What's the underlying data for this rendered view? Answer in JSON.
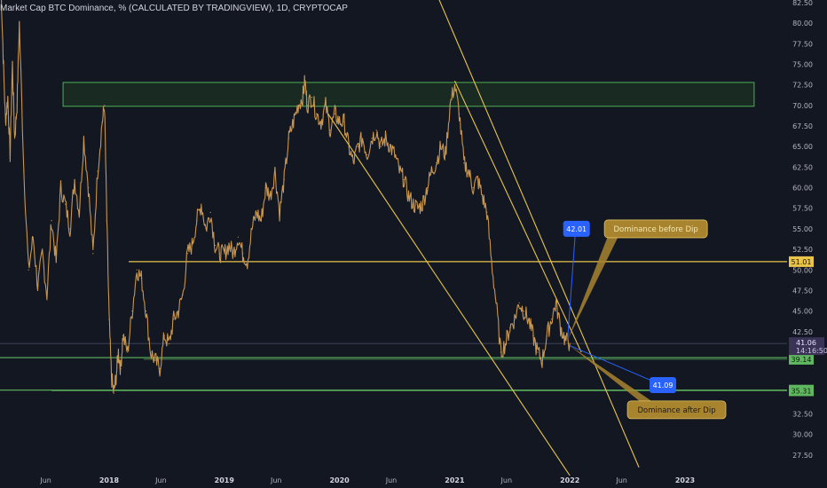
{
  "header": {
    "title": "Market Cap BTC Dominance, % (CALCULATED BY TRADINGVIEW), 1D, CRYPTOCAP"
  },
  "colors": {
    "background": "#131722",
    "candle": "#c8964f",
    "trendline": "#e8c44a",
    "support": "#5fb85f",
    "zone_fill": "#1f3a22",
    "zone_border": "#4caf50",
    "price_tag": "#3a3355",
    "callout_bg": "#a8842f",
    "value_box": "#2962ff"
  },
  "chart_data": {
    "type": "line",
    "title": "Market Cap BTC Dominance, % (CALCULATED BY TRADINGVIEW), 1D, CRYPTOCAP",
    "xlabel": "",
    "ylabel": "",
    "ylim": [
      25,
      82.5
    ],
    "x_ticks": [
      {
        "t": 2017.45,
        "label": "Jun"
      },
      {
        "t": 2018.0,
        "label": "2018"
      },
      {
        "t": 2018.45,
        "label": "Jun"
      },
      {
        "t": 2019.0,
        "label": "2019"
      },
      {
        "t": 2019.45,
        "label": "Jun"
      },
      {
        "t": 2020.0,
        "label": "2020"
      },
      {
        "t": 2020.45,
        "label": "Jun"
      },
      {
        "t": 2021.0,
        "label": "2021"
      },
      {
        "t": 2021.45,
        "label": "Jun"
      },
      {
        "t": 2022.0,
        "label": "2022"
      },
      {
        "t": 2022.45,
        "label": "Jun"
      },
      {
        "t": 2023.0,
        "label": "2023"
      }
    ],
    "y_ticks": [
      "82.50",
      "80.00",
      "77.50",
      "75.00",
      "72.50",
      "70.00",
      "67.50",
      "65.00",
      "62.50",
      "60.00",
      "57.50",
      "55.00",
      "52.50",
      "50.00",
      "47.50",
      "45.00",
      "42.50",
      "32.50",
      "30.00",
      "27.50"
    ],
    "series": [
      {
        "values": [
          [
            2017.06,
            85
          ],
          [
            2017.08,
            76
          ],
          [
            2017.1,
            68
          ],
          [
            2017.12,
            71
          ],
          [
            2017.14,
            64
          ],
          [
            2017.16,
            75
          ],
          [
            2017.18,
            66
          ],
          [
            2017.2,
            70
          ],
          [
            2017.22,
            80
          ],
          [
            2017.26,
            62
          ],
          [
            2017.3,
            50
          ],
          [
            2017.34,
            54
          ],
          [
            2017.38,
            48
          ],
          [
            2017.42,
            52
          ],
          [
            2017.46,
            47
          ],
          [
            2017.5,
            56
          ],
          [
            2017.54,
            51
          ],
          [
            2017.58,
            60
          ],
          [
            2017.62,
            58
          ],
          [
            2017.66,
            55
          ],
          [
            2017.7,
            61
          ],
          [
            2017.74,
            57
          ],
          [
            2017.78,
            66
          ],
          [
            2017.82,
            60
          ],
          [
            2017.86,
            52
          ],
          [
            2017.9,
            62
          ],
          [
            2017.94,
            68
          ],
          [
            2017.96,
            70
          ],
          [
            2017.98,
            56
          ],
          [
            2018.0,
            44
          ],
          [
            2018.02,
            37
          ],
          [
            2018.04,
            35
          ],
          [
            2018.06,
            37
          ],
          [
            2018.08,
            40
          ],
          [
            2018.1,
            38
          ],
          [
            2018.12,
            42
          ],
          [
            2018.16,
            40
          ],
          [
            2018.2,
            45
          ],
          [
            2018.24,
            50
          ],
          [
            2018.28,
            49
          ],
          [
            2018.32,
            45
          ],
          [
            2018.36,
            40
          ],
          [
            2018.4,
            39
          ],
          [
            2018.44,
            38
          ],
          [
            2018.48,
            42
          ],
          [
            2018.52,
            41
          ],
          [
            2018.56,
            44
          ],
          [
            2018.6,
            45
          ],
          [
            2018.64,
            47
          ],
          [
            2018.68,
            52
          ],
          [
            2018.72,
            53
          ],
          [
            2018.76,
            56
          ],
          [
            2018.8,
            58
          ],
          [
            2018.84,
            55
          ],
          [
            2018.88,
            57
          ],
          [
            2018.92,
            53
          ],
          [
            2018.96,
            52
          ],
          [
            2019.0,
            52
          ],
          [
            2019.04,
            53
          ],
          [
            2019.08,
            52
          ],
          [
            2019.12,
            54
          ],
          [
            2019.16,
            52
          ],
          [
            2019.2,
            51
          ],
          [
            2019.24,
            55
          ],
          [
            2019.28,
            57
          ],
          [
            2019.32,
            56
          ],
          [
            2019.36,
            60
          ],
          [
            2019.4,
            59
          ],
          [
            2019.44,
            62
          ],
          [
            2019.48,
            57
          ],
          [
            2019.52,
            61
          ],
          [
            2019.56,
            66
          ],
          [
            2019.6,
            68
          ],
          [
            2019.64,
            70
          ],
          [
            2019.68,
            71
          ],
          [
            2019.7,
            73
          ],
          [
            2019.72,
            70
          ],
          [
            2019.76,
            71
          ],
          [
            2019.8,
            69
          ],
          [
            2019.84,
            68
          ],
          [
            2019.88,
            70
          ],
          [
            2019.92,
            67
          ],
          [
            2019.96,
            69
          ],
          [
            2020.0,
            68
          ],
          [
            2020.04,
            68
          ],
          [
            2020.08,
            65
          ],
          [
            2020.12,
            63
          ],
          [
            2020.16,
            65
          ],
          [
            2020.2,
            66
          ],
          [
            2020.24,
            64
          ],
          [
            2020.28,
            66
          ],
          [
            2020.32,
            67
          ],
          [
            2020.36,
            65
          ],
          [
            2020.4,
            66
          ],
          [
            2020.44,
            65
          ],
          [
            2020.48,
            64
          ],
          [
            2020.52,
            62
          ],
          [
            2020.56,
            61
          ],
          [
            2020.6,
            59
          ],
          [
            2020.64,
            58
          ],
          [
            2020.68,
            57.5
          ],
          [
            2020.72,
            58
          ],
          [
            2020.76,
            60
          ],
          [
            2020.8,
            62
          ],
          [
            2020.84,
            63
          ],
          [
            2020.88,
            65
          ],
          [
            2020.92,
            64
          ],
          [
            2020.96,
            70
          ],
          [
            2021.0,
            72.5
          ],
          [
            2021.04,
            69
          ],
          [
            2021.08,
            63
          ],
          [
            2021.12,
            62
          ],
          [
            2021.16,
            60
          ],
          [
            2021.2,
            61
          ],
          [
            2021.24,
            59
          ],
          [
            2021.28,
            57
          ],
          [
            2021.32,
            51
          ],
          [
            2021.36,
            46
          ],
          [
            2021.4,
            40
          ],
          [
            2021.44,
            41
          ],
          [
            2021.48,
            43
          ],
          [
            2021.52,
            44
          ],
          [
            2021.56,
            46
          ],
          [
            2021.6,
            45
          ],
          [
            2021.64,
            44
          ],
          [
            2021.68,
            42
          ],
          [
            2021.72,
            40
          ],
          [
            2021.76,
            39
          ],
          [
            2021.8,
            42
          ],
          [
            2021.84,
            44
          ],
          [
            2021.88,
            46
          ],
          [
            2021.92,
            43
          ],
          [
            2021.96,
            41.5
          ],
          [
            2022.0,
            41.06
          ]
        ]
      }
    ],
    "zones": [
      {
        "t_start": 2017.6,
        "t_end": 2023.6,
        "y_low": 69.9,
        "y_high": 72.8
      }
    ],
    "horizontal_lines": [
      {
        "y": 51.01,
        "t_start": 2018.17,
        "label": "51.01",
        "kind": "resistance"
      },
      {
        "y": 41.06,
        "t_start": 2016.9,
        "label": "41.06",
        "kind": "current"
      },
      {
        "y": 39.34,
        "t_start": 2016.9,
        "label": "39.34",
        "kind": "support"
      },
      {
        "y": 39.14,
        "t_start": 2018.3,
        "label": "39.14",
        "kind": "support-thin"
      },
      {
        "y": 35.39,
        "t_start": 2016.9,
        "label": "35.39",
        "kind": "support"
      },
      {
        "y": 35.31,
        "t_start": 2017.5,
        "label": "35.31",
        "kind": "support-thin"
      }
    ],
    "trendlines": [
      {
        "p1": [
          2019.9,
          69
        ],
        "p2": [
          2022.0,
          25
        ]
      },
      {
        "p1": [
          2020.8,
          85
        ],
        "p2": [
          2022.6,
          26
        ]
      },
      {
        "p1": [
          2021.0,
          73
        ],
        "p2": [
          2022.1,
          40
        ]
      }
    ],
    "price_tag": {
      "value": "41.06",
      "countdown": "14:16:50"
    },
    "annotations": [
      {
        "box_text": "42.01",
        "box_at": [
          2022.05,
          55
        ],
        "target": [
          2021.98,
          41.5
        ],
        "callout": "Dominance before Dip",
        "callout_at": [
          2022.3,
          55
        ]
      },
      {
        "box_text": "41.09",
        "box_at": [
          2022.8,
          36
        ],
        "target": [
          2022.0,
          40.8
        ],
        "callout": "Dominance after Dip",
        "callout_at": [
          2022.5,
          33
        ]
      }
    ]
  }
}
